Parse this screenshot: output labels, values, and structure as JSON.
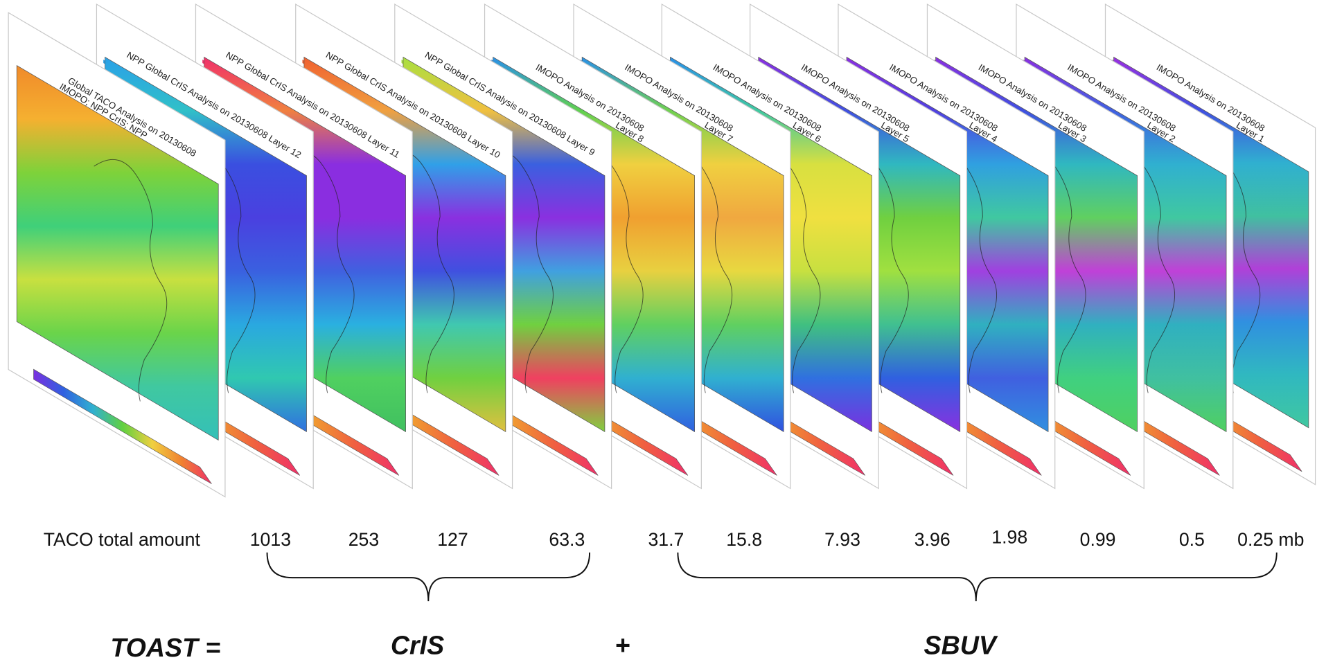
{
  "panels": [
    {
      "title": [
        "Global TACO Analysis on 20130608",
        "IMOPO; NPP CrIS; NPP"
      ]
    },
    {
      "title": [
        "NPP Global CrIS Analysis on 20130608 Layer 12"
      ]
    },
    {
      "title": [
        "NPP Global CrIS Analysis on 20130608 Layer 11"
      ]
    },
    {
      "title": [
        "NPP Global CrIS Analysis on 20130608 Layer 10"
      ]
    },
    {
      "title": [
        "NPP Global CrIS Analysis on 20130608 Layer 9"
      ]
    },
    {
      "title": [
        "IMOPO Analysis on 20130608",
        "Layer 8"
      ]
    },
    {
      "title": [
        "IMOPO Analysis on 20130608",
        "Layer 7"
      ]
    },
    {
      "title": [
        "IMOPO Analysis on 20130608",
        "Layer 6"
      ]
    },
    {
      "title": [
        "IMOPO Analysis on 20130608",
        "Layer 5"
      ]
    },
    {
      "title": [
        "IMOPO Analysis on 20130608",
        "Layer 4"
      ]
    },
    {
      "title": [
        "IMOPO Analysis on 20130608",
        "Layer 3"
      ]
    },
    {
      "title": [
        "IMOPO Analysis on 20130608",
        "Layer 2"
      ]
    },
    {
      "title": [
        "IMOPO Analysis on 20130608",
        "Layer 1"
      ]
    }
  ],
  "pressure_label": "TACO total amount",
  "pressures": [
    "1013",
    "253",
    "127",
    "63.3",
    "31.7",
    "15.8",
    "7.93",
    "3.96",
    "1.98",
    "0.99",
    "0.5",
    "0.25 mb"
  ],
  "formula": {
    "lhs": "TOAST =",
    "term1": "CrIS",
    "operator": "+",
    "term2": "SBUV"
  }
}
